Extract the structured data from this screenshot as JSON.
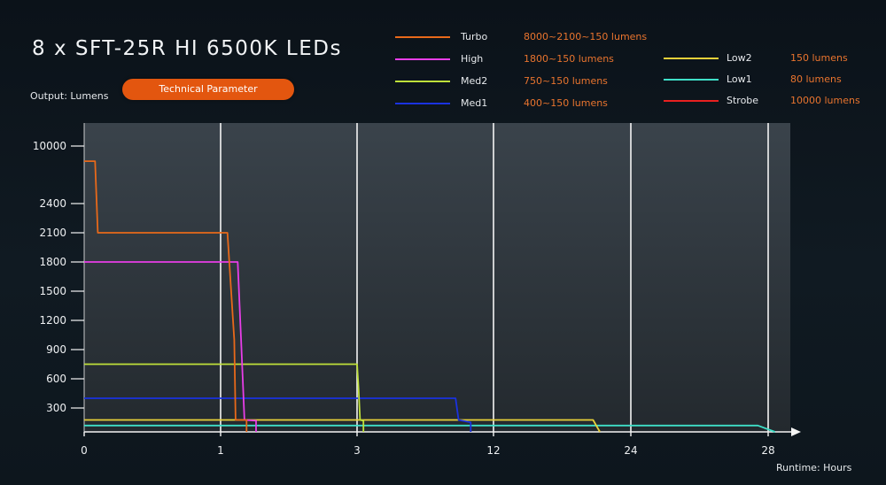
{
  "title": "8 x SFT-25R HI 6500K LEDs",
  "button": {
    "label": "Technical Parameter"
  },
  "legend": [
    {
      "name": "Turbo",
      "desc": "8000~2100~150 lumens",
      "color": "#e8691a"
    },
    {
      "name": "High",
      "desc": "1800~150 lumens",
      "color": "#e83ee8"
    },
    {
      "name": "Med2",
      "desc": "750~150 lumens",
      "color": "#bfe03a"
    },
    {
      "name": "Med1",
      "desc": "400~150 lumens",
      "color": "#1a32e0"
    },
    {
      "name": "Low2",
      "desc": "150 lumens",
      "color": "#e8d13a"
    },
    {
      "name": "Low1",
      "desc": "80 lumens",
      "color": "#3fe0c8"
    },
    {
      "name": "Strobe",
      "desc": "10000 lumens",
      "color": "#e82020"
    }
  ],
  "chart_data": {
    "type": "line",
    "title": "8 x SFT-25R HI 6500K LEDs",
    "ylabel": "Output: Lumens",
    "xlabel": "Runtime: Hours",
    "x_ticks": [
      "0",
      "1",
      "3",
      "12",
      "24",
      "28"
    ],
    "y_ticks": [
      "300",
      "600",
      "900",
      "1200",
      "1500",
      "1800",
      "2100",
      "2400",
      "10000"
    ],
    "grid": "vertical",
    "note": "x axis uses non-uniform tick spacing; runtimes below are in hours",
    "series": [
      {
        "name": "Turbo",
        "color": "#e8691a",
        "points": [
          [
            0,
            8000
          ],
          [
            0.08,
            8000
          ],
          [
            0.1,
            2100
          ],
          [
            1.1,
            2100
          ],
          [
            1.2,
            1000
          ],
          [
            1.22,
            150
          ],
          [
            1.38,
            150
          ],
          [
            1.38,
            0
          ]
        ]
      },
      {
        "name": "High",
        "color": "#e83ee8",
        "points": [
          [
            0,
            1800
          ],
          [
            1.25,
            1800
          ],
          [
            1.3,
            1000
          ],
          [
            1.35,
            150
          ],
          [
            1.52,
            140
          ],
          [
            1.52,
            0
          ]
        ]
      },
      {
        "name": "Med2",
        "color": "#bfe03a",
        "points": [
          [
            0,
            750
          ],
          [
            3.0,
            750
          ],
          [
            3.1,
            500
          ],
          [
            3.2,
            150
          ],
          [
            3.42,
            140
          ],
          [
            3.42,
            0
          ]
        ]
      },
      {
        "name": "Med1",
        "color": "#1a32e0",
        "points": [
          [
            0,
            400
          ],
          [
            9.5,
            400
          ],
          [
            9.7,
            150
          ],
          [
            10.5,
            120
          ],
          [
            10.5,
            0
          ]
        ]
      },
      {
        "name": "Low2",
        "color": "#e8d13a",
        "points": [
          [
            0,
            150
          ],
          [
            20.7,
            150
          ],
          [
            21.3,
            0
          ]
        ]
      },
      {
        "name": "Low1",
        "color": "#3fe0c8",
        "points": [
          [
            0,
            80
          ],
          [
            27.7,
            80
          ],
          [
            28.2,
            0
          ]
        ]
      }
    ]
  }
}
